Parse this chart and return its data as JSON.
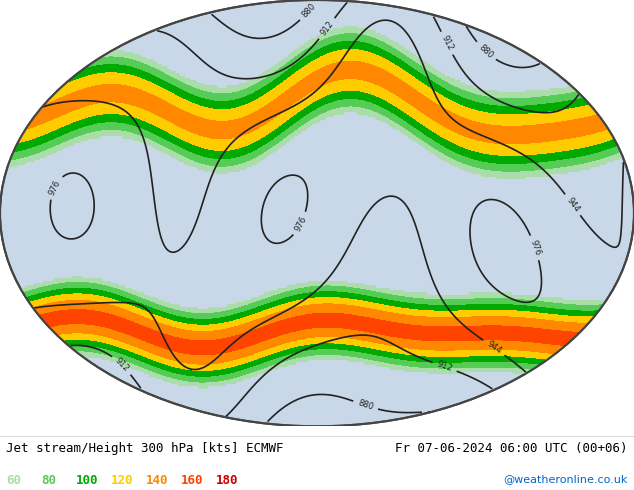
{
  "title_left": "Jet stream/Height 300 hPa [kts] ECMWF",
  "title_right": "Fr 07-06-2024 06:00 UTC (00+06)",
  "copyright": "@weatheronline.co.uk",
  "legend_values": [
    "60",
    "80",
    "100",
    "120",
    "140",
    "160",
    "180"
  ],
  "legend_colors": [
    "#aaddaa",
    "#55cc55",
    "#00aa00",
    "#ffcc00",
    "#ff8800",
    "#ff4400",
    "#cc0000"
  ],
  "bg_color": "#ffffff",
  "map_bg": "#dddddd",
  "land_color": "#cceecc",
  "ocean_color": "#e8e8e8",
  "contour_color": "#222222",
  "contour_label_size": 7,
  "figsize": [
    6.34,
    4.9
  ],
  "dpi": 100
}
